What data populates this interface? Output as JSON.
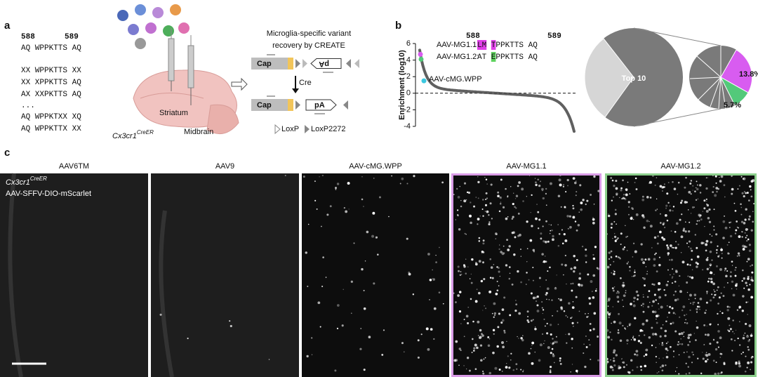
{
  "panel_a": {
    "label": "a",
    "positions": [
      "588",
      "589"
    ],
    "sequences": [
      "AQ WPPKTTS AQ",
      "XX WPPKTTS XX",
      "XX XPPKTTS AQ",
      "AX XXPKTTS AQ",
      "...",
      "AQ WPPKTXX XQ",
      "AQ WPPKTTX XX"
    ],
    "brain_labels": [
      "Striatum",
      "Midbrain"
    ],
    "mouse_line": "Cx3cr1",
    "mouse_line_sup": "CreER"
  },
  "create": {
    "title": [
      "Microglia-specific variant",
      "recovery by CREATE"
    ],
    "cap": "Cap",
    "pa": "pA",
    "cre": "Cre",
    "loxp": "LoxP",
    "loxp2272": "LoxP2272"
  },
  "panel_b": {
    "label": "b",
    "y_label": "Enrichment (log10)",
    "ylim": [
      -4,
      6
    ],
    "yticks": [
      -4,
      -2,
      0,
      2,
      4,
      6
    ],
    "positions": [
      "588",
      "589"
    ],
    "variants": [
      {
        "name": "AAV-MG1.1:",
        "parts": [
          {
            "text": "LM",
            "highlight": "#e040e8"
          },
          {
            "text": " "
          },
          {
            "text": "T",
            "highlight": "#e040e8"
          },
          {
            "text": "PPKTTS AQ"
          }
        ]
      },
      {
        "name": "AAV-MG1.2:",
        "parts": [
          {
            "text": "AT"
          },
          {
            "text": " "
          },
          {
            "text": "E",
            "highlight": "#5fd35f"
          },
          {
            "text": "PPKTTS AQ"
          }
        ]
      }
    ],
    "callout": "AAV-cMG.WPP",
    "pie_center": "Top 10",
    "pie_labels": [
      "13.8%",
      "5.7%"
    ]
  },
  "panel_c": {
    "label": "c",
    "columns": [
      "AAV6TM",
      "AAV9",
      "AAV-cMG.WPP",
      "AAV-MG1.1",
      "AAV-MG1.2"
    ],
    "overlay_line": "Cx3cr1",
    "overlay_sup": "CreER",
    "overlay_construct": "AAV-SFFV-DIO-mScarlet"
  }
}
